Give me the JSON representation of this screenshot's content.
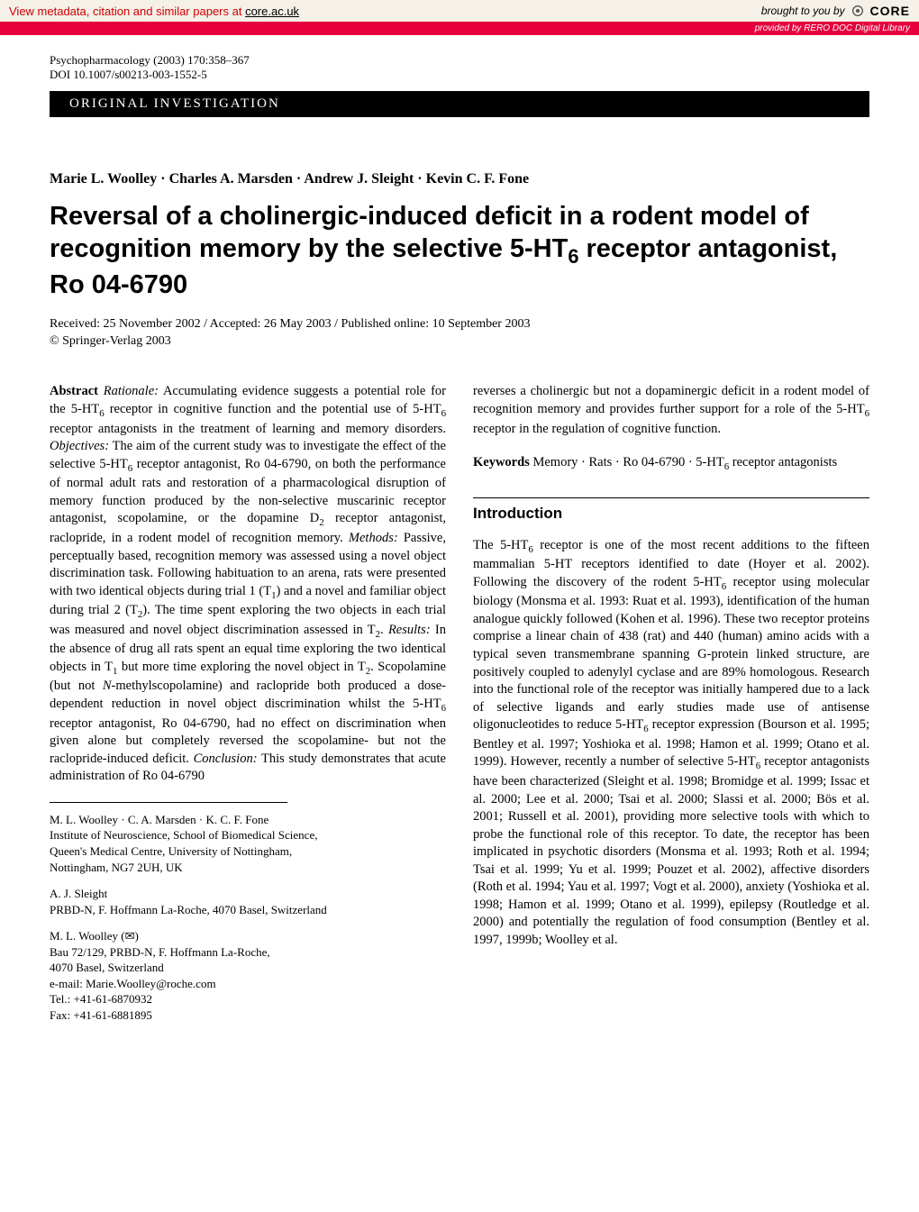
{
  "core_banner": {
    "left_prefix": "View metadata, citation and similar papers at ",
    "link_text": "core.ac.uk",
    "brought": "brought to you by",
    "logo": "CORE",
    "provided": "provided by RERO DOC Digital Library"
  },
  "journal": {
    "citation": "Psychopharmacology (2003) 170:358–367",
    "doi": "DOI 10.1007/s00213-003-1552-5"
  },
  "section_label": "ORIGINAL INVESTIGATION",
  "authors_line": "Marie L. Woolley · Charles A. Marsden · Andrew J. Sleight · Kevin C. F. Fone",
  "title_html": "Reversal of a cholinergic-induced deficit in a rodent model of recognition memory by the selective 5-HT<sub>6</sub> receptor antagonist, Ro 04-6790",
  "dates": "Received: 25 November 2002 / Accepted: 26 May 2003 / Published online: 10 September 2003",
  "copyright": "© Springer-Verlag 2003",
  "left_column": {
    "abstract_label": "Abstract",
    "abstract_body_html": " <i>Rationale:</i> Accumulating evidence suggests a potential role for the 5-HT<sub>6</sub> receptor in cognitive function and the potential use of 5-HT<sub>6</sub> receptor antagonists in the treatment of learning and memory disorders. <i>Objectives:</i> The aim of the current study was to investigate the effect of the selective 5-HT<sub>6</sub> receptor antagonist, Ro 04-6790, on both the performance of normal adult rats and restoration of a pharmacological disruption of memory function produced by the non-selective muscarinic receptor antagonist, scopolamine, or the dopamine D<sub>2</sub> receptor antagonist, raclopride, in a rodent model of recognition memory. <i>Methods:</i> Passive, perceptually based, recognition memory was assessed using a novel object discrimination task. Following habituation to an arena, rats were presented with two identical objects during trial 1 (T<sub>1</sub>) and a novel and familiar object during trial 2 (T<sub>2</sub>). The time spent exploring the two objects in each trial was measured and novel object discrimination assessed in T<sub>2</sub>. <i>Results:</i> In the absence of drug all rats spent an equal time exploring the two identical objects in T<sub>1</sub> but more time exploring the novel object in T<sub>2</sub>. Scopolamine (but not <i>N</i>-methylscopolamine) and raclopride both produced a dose-dependent reduction in novel object discrimination whilst the 5-HT<sub>6</sub> receptor antagonist, Ro 04-6790, had no effect on discrimination when given alone but completely reversed the scopolamine- but not the raclopride-induced deficit. <i>Conclusion:</i> This study demonstrates that acute administration of Ro 04-6790",
    "affil1": {
      "names": "M. L. Woolley · C. A. Marsden · K. C. F. Fone",
      "line1": "Institute of Neuroscience, School of Biomedical Science,",
      "line2": "Queen's Medical Centre, University of Nottingham,",
      "line3": "Nottingham, NG7 2UH, UK"
    },
    "affil2": {
      "names": "A. J. Sleight",
      "line1": "PRBD-N, F. Hoffmann La-Roche, 4070 Basel, Switzerland"
    },
    "affil3": {
      "names": "M. L. Woolley (✉)",
      "line1": "Bau 72/129, PRBD-N, F. Hoffmann La-Roche,",
      "line2": "4070 Basel, Switzerland",
      "email": "e-mail: Marie.Woolley@roche.com",
      "tel": "Tel.: +41-61-6870932",
      "fax": "Fax: +41-61-6881895"
    }
  },
  "right_column": {
    "abstract_continuation_html": "reverses a cholinergic but not a dopaminergic deficit in a rodent model of recognition memory and provides further support for a role of the 5-HT<sub>6</sub> receptor in the regulation of cognitive function.",
    "keywords_label": "Keywords",
    "keywords_text_html": " Memory · Rats · Ro 04-6790 · 5-HT<sub>6</sub> receptor antagonists",
    "intro_heading": "Introduction",
    "intro_body_html": "The 5-HT<sub>6</sub> receptor is one of the most recent additions to the fifteen mammalian 5-HT receptors identified to date (Hoyer et al. 2002). Following the discovery of the rodent 5-HT<sub>6</sub> receptor using molecular biology (Monsma et al. 1993: Ruat et al. 1993), identification of the human analogue quickly followed (Kohen et al. 1996). These two receptor proteins comprise a linear chain of 438 (rat) and 440 (human) amino acids with a typical seven transmembrane spanning G-protein linked structure, are positively coupled to adenylyl cyclase and are 89% homologous. Research into the functional role of the receptor was initially hampered due to a lack of selective ligands and early studies made use of antisense oligonucleotides to reduce 5-HT<sub>6</sub> receptor expression (Bourson et al. 1995; Bentley et al. 1997; Yoshioka et al. 1998; Hamon et al. 1999; Otano et al. 1999). However, recently a number of selective 5-HT<sub>6</sub> receptor antagonists have been characterized (Sleight et al. 1998; Bromidge et al. 1999; Issac et al. 2000; Lee et al. 2000; Tsai et al. 2000; Slassi et al. 2000; Bös et al. 2001; Russell et al. 2001), providing more selective tools with which to probe the functional role of this receptor. To date, the receptor has been implicated in psychotic disorders (Monsma et al. 1993; Roth et al. 1994; Tsai et al. 1999; Yu et al. 1999; Pouzet et al. 2002), affective disorders (Roth et al. 1994; Yau et al. 1997; Vogt et al. 2000), anxiety (Yoshioka et al. 1998; Hamon et al. 1999; Otano et al. 1999), epilepsy (Routledge et al. 2000) and potentially the regulation of food consumption (Bentley et al. 1997, 1999b; Woolley et al."
  },
  "colors": {
    "banner_bg": "#f5f0e8",
    "banner_red_text": "#cc0000",
    "provided_bg": "#e6003c",
    "section_bg": "#000000",
    "text": "#000000",
    "bg": "#ffffff"
  }
}
